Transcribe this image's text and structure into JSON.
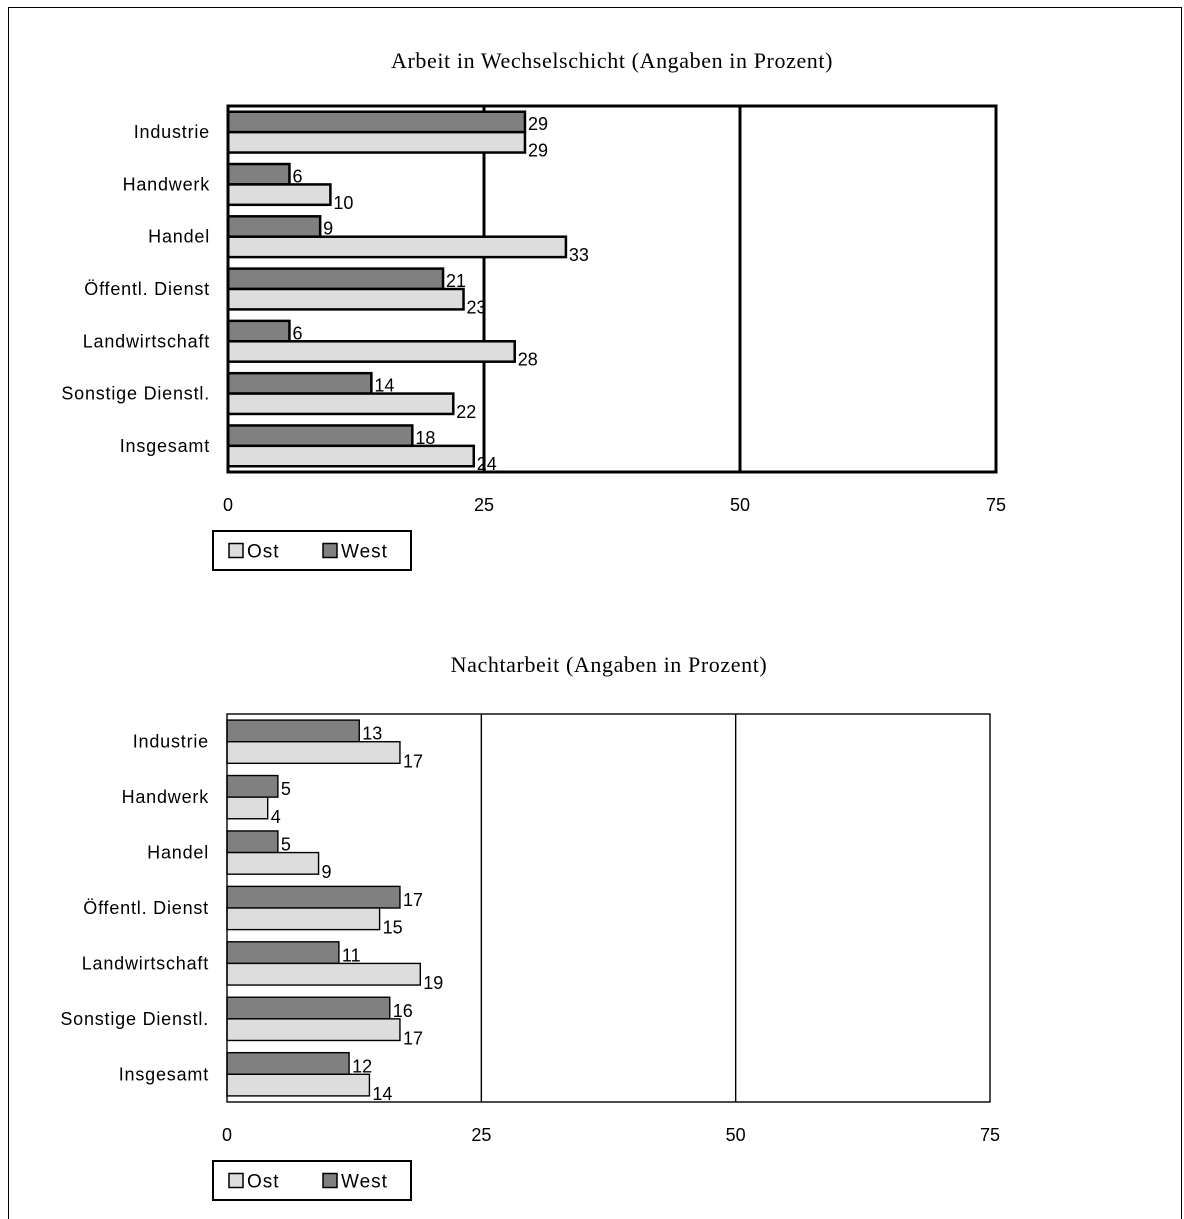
{
  "chart_data": [
    {
      "type": "bar",
      "orientation": "horizontal",
      "title": "Arbeit in Wechselschicht (Angaben in Prozent)",
      "categories": [
        "Industrie",
        "Handwerk",
        "Handel",
        "Öffentl. Dienst",
        "Landwirtschaft",
        "Sonstige Dienstl.",
        "Insgesamt"
      ],
      "series": [
        {
          "name": "Ost",
          "color": "#dddddd",
          "values": [
            29,
            10,
            33,
            23,
            28,
            22,
            24
          ]
        },
        {
          "name": "West",
          "color": "#808080",
          "values": [
            29,
            6,
            9,
            21,
            6,
            14,
            18
          ]
        }
      ],
      "xlim": [
        0,
        75
      ],
      "xticks": [
        "0",
        "25",
        "50",
        "75"
      ],
      "grid": true,
      "legend": "bottom-left"
    },
    {
      "type": "bar",
      "orientation": "horizontal",
      "title": "Nachtarbeit (Angaben in Prozent)",
      "categories": [
        "Industrie",
        "Handwerk",
        "Handel",
        "Öffentl. Dienst",
        "Landwirtschaft",
        "Sonstige Dienstl.",
        "Insgesamt"
      ],
      "series": [
        {
          "name": "Ost",
          "color": "#dddddd",
          "values": [
            17,
            4,
            9,
            15,
            19,
            17,
            14
          ]
        },
        {
          "name": "West",
          "color": "#808080",
          "values": [
            13,
            5,
            5,
            17,
            11,
            16,
            12
          ]
        }
      ],
      "xlim": [
        0,
        75
      ],
      "xticks": [
        "0",
        "25",
        "50",
        "75"
      ],
      "grid": true,
      "legend": "bottom-left"
    }
  ]
}
